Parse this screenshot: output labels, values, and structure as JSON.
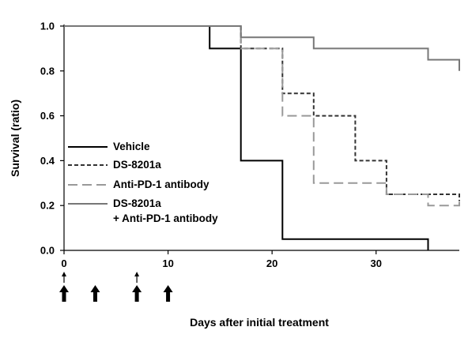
{
  "chart_data": {
    "type": "line",
    "title": "",
    "xlabel": "Days after initial treatment",
    "ylabel": "Survival (ratio)",
    "xlim": [
      0,
      38
    ],
    "ylim": [
      0,
      1.0
    ],
    "x_ticks": [
      "0",
      "10",
      "20",
      "30"
    ],
    "x_tick_values": [
      0,
      10,
      20,
      30
    ],
    "y_ticks": [
      "0.0",
      "0.2",
      "0.4",
      "0.6",
      "0.8",
      "1.0"
    ],
    "y_tick_values": [
      0,
      0.2,
      0.4,
      0.6,
      0.8,
      1.0
    ],
    "grid": false,
    "legend_position": "bottom-left",
    "series": [
      {
        "name": "Vehicle",
        "color": "#000000",
        "style": "solid",
        "x": [
          0,
          14,
          14,
          17,
          17,
          21,
          21,
          35,
          35
        ],
        "y": [
          1.0,
          1.0,
          0.9,
          0.9,
          0.4,
          0.4,
          0.05,
          0.05,
          0.0
        ]
      },
      {
        "name": "DS-8201a",
        "color": "#333333",
        "style": "short-dash",
        "x": [
          0,
          17,
          17,
          21,
          21,
          24,
          24,
          28,
          28,
          31,
          31,
          38,
          38
        ],
        "y": [
          1.0,
          1.0,
          0.9,
          0.9,
          0.7,
          0.7,
          0.6,
          0.6,
          0.4,
          0.4,
          0.25,
          0.25,
          0.22
        ]
      },
      {
        "name": "Anti-PD-1 antibody",
        "color": "#999999",
        "style": "long-dash",
        "x": [
          0,
          17,
          17,
          21,
          21,
          24,
          24,
          31,
          31,
          35,
          35,
          38,
          38
        ],
        "y": [
          1.0,
          1.0,
          0.9,
          0.9,
          0.6,
          0.6,
          0.3,
          0.3,
          0.25,
          0.25,
          0.2,
          0.2,
          0.22
        ]
      },
      {
        "name": "DS-8201a\n+ Anti-PD-1 antibody",
        "name_lines": [
          "DS-8201a",
          "+ Anti-PD-1 antibody"
        ],
        "color": "#777777",
        "style": "solid",
        "x": [
          0,
          17,
          17,
          24,
          24,
          35,
          35,
          38,
          38
        ],
        "y": [
          1.0,
          1.0,
          0.95,
          0.95,
          0.9,
          0.9,
          0.85,
          0.85,
          0.8
        ]
      }
    ],
    "dosing_markers": {
      "thick_arrow_days": [
        0,
        3,
        7,
        10
      ],
      "thin_arrow_days": [
        0,
        7
      ]
    }
  }
}
